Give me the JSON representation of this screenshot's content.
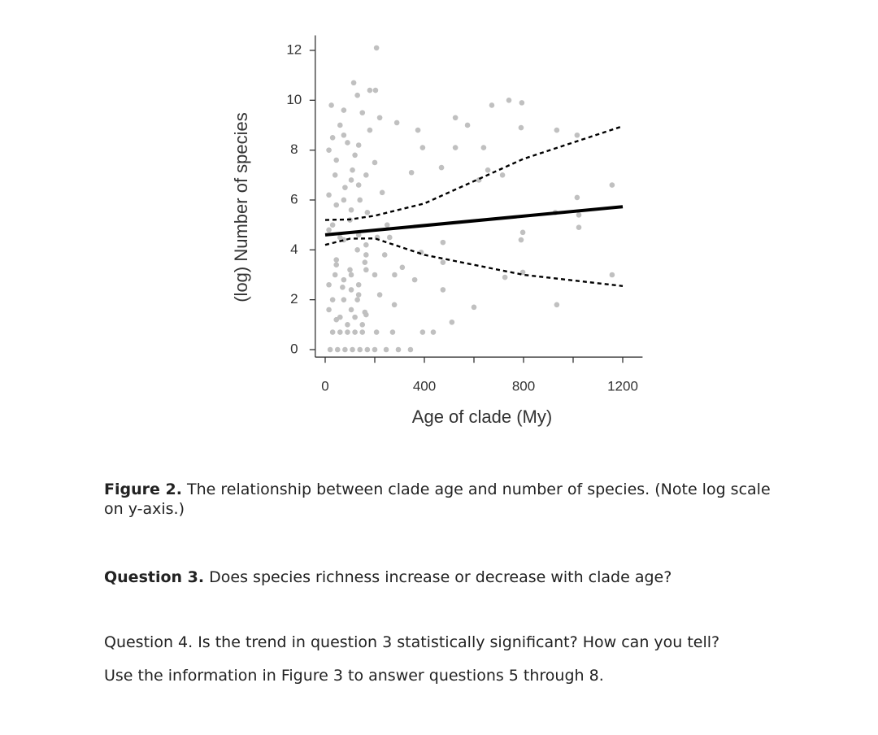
{
  "chart_data": {
    "type": "scatter",
    "xlabel": "Age of clade (My)",
    "ylabel": "(log) Number of species",
    "xlim": [
      -40,
      1280
    ],
    "ylim": [
      -0.3,
      12.6
    ],
    "xticks": [
      0,
      400,
      800,
      1200
    ],
    "minor_xticks": [
      200,
      600,
      1000
    ],
    "yticks": [
      0,
      2,
      4,
      6,
      8,
      10,
      12
    ],
    "series": [
      {
        "color": "#c0c0c0",
        "x": [
          207,
          115,
          203,
          289,
          374,
          393,
          525,
          574,
          672,
          741,
          793,
          790,
          934,
          1016,
          525,
          639,
          348,
          469,
          656,
          620,
          715,
          1157,
          1016,
          1023,
          1023,
          928,
          797,
          790,
          475,
          387,
          475,
          725,
          797,
          1157,
          934,
          600,
          511,
          475,
          361,
          311,
          279,
          393,
          436,
          246,
          295,
          344,
          272,
          207,
          30,
          60,
          90,
          120,
          150,
          180,
          40,
          80,
          110,
          140,
          170,
          30,
          60,
          100,
          130,
          160,
          200,
          40,
          70,
          100,
          130,
          160,
          220,
          240,
          250,
          30,
          60,
          90,
          120,
          150,
          30,
          60,
          90,
          120,
          150,
          20,
          50,
          80,
          110,
          140,
          170,
          200,
          25,
          75,
          130,
          180,
          220,
          200,
          230,
          260,
          280,
          210,
          15,
          45,
          75,
          105,
          135,
          165,
          15,
          45,
          75,
          105,
          135,
          165,
          15,
          45,
          75,
          105,
          135,
          165,
          15,
          45,
          75,
          105,
          135,
          165,
          15,
          45,
          75,
          105,
          135,
          165
        ],
        "values": [
          12.1,
          10.7,
          10.4,
          9.1,
          8.8,
          8.1,
          9.3,
          9.0,
          9.8,
          10.0,
          9.9,
          8.9,
          8.8,
          8.6,
          8.1,
          8.1,
          7.1,
          7.3,
          7.2,
          6.8,
          7.0,
          6.6,
          6.1,
          5.4,
          4.9,
          5.5,
          4.7,
          4.4,
          4.3,
          3.9,
          3.5,
          2.9,
          3.1,
          3.0,
          1.8,
          1.7,
          1.1,
          2.4,
          2.8,
          3.3,
          1.8,
          0.7,
          0.7,
          0,
          0,
          0,
          0.7,
          0.7,
          8.5,
          9.0,
          8.3,
          7.8,
          9.5,
          8.8,
          7.0,
          6.5,
          7.2,
          6.0,
          5.5,
          5.0,
          4.5,
          5.2,
          4.0,
          3.5,
          3.0,
          3.0,
          2.5,
          3.2,
          2.0,
          1.5,
          2.2,
          3.8,
          5.0,
          2.0,
          1.3,
          1.0,
          1.3,
          1.0,
          0.7,
          0.7,
          0.7,
          0.7,
          0.7,
          0,
          0,
          0,
          0,
          0,
          0,
          0,
          9.8,
          9.6,
          10.2,
          10.4,
          9.3,
          7.5,
          6.3,
          4.5,
          3.0,
          4.5,
          8.0,
          7.6,
          8.6,
          6.8,
          8.2,
          7.0,
          6.2,
          5.8,
          6.0,
          5.6,
          6.6,
          4.2,
          4.8,
          3.6,
          4.4,
          3.0,
          4.6,
          3.8,
          2.6,
          3.4,
          2.8,
          2.4,
          2.2,
          3.2,
          1.6,
          1.2,
          2.0,
          1.6,
          2.6,
          1.4
        ]
      }
    ],
    "fit": {
      "color": "#000000",
      "x": [
        0,
        1200
      ],
      "values": [
        4.6,
        5.73
      ]
    },
    "ci_upper": {
      "color": "#000000",
      "x": [
        0,
        100,
        200,
        400,
        800,
        1200
      ],
      "values": [
        5.2,
        5.22,
        5.37,
        5.86,
        7.65,
        8.96
      ]
    },
    "ci_lower": {
      "color": "#000000",
      "x": [
        0,
        100,
        200,
        400,
        800,
        1200
      ],
      "values": [
        4.2,
        4.45,
        4.46,
        3.8,
        3.0,
        2.55
      ]
    }
  },
  "document": {
    "caption": {
      "label": "Figure 2.",
      "text": "The relationship between clade age and number of species. (Note log scale on y-axis.)"
    },
    "question3": {
      "label": "Question 3.",
      "text": "Does species richness increase or decrease with clade age?"
    },
    "question4": "Question 4. Is the trend in question 3 statistically significant? How can you tell?",
    "instruction": "Use the information in Figure 3 to answer questions 5 through 8."
  }
}
